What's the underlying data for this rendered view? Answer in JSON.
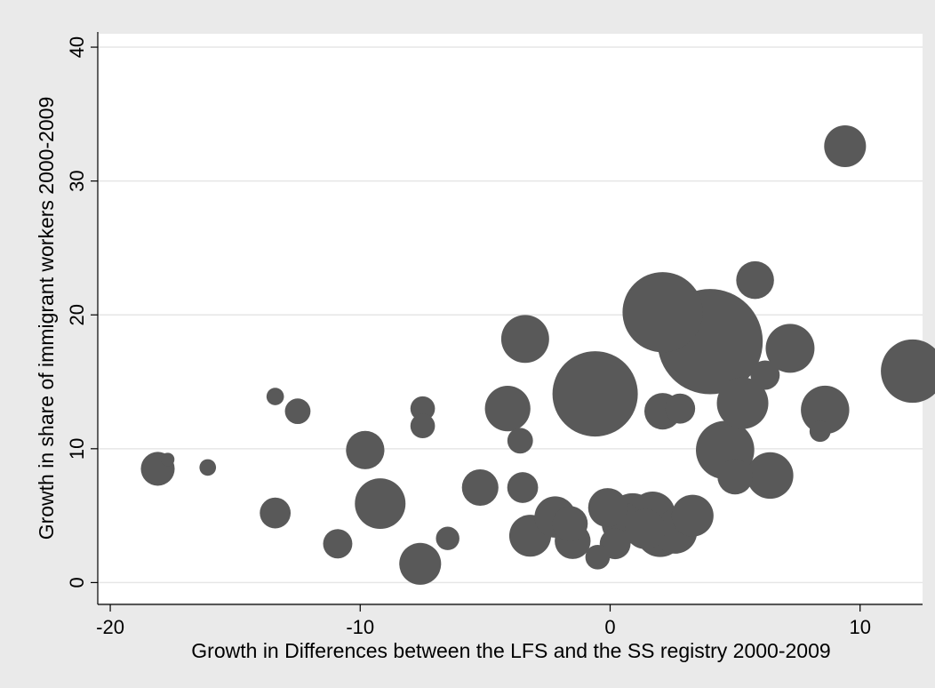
{
  "chart_data": {
    "type": "scatter",
    "subtype": "bubble",
    "title": "",
    "xlabel": "Growth in Differences between the LFS and the SS registry 2000-2009",
    "ylabel": "Growth in share of immigrant workers 2000-2009",
    "xlim": [
      -20.5,
      12.5
    ],
    "ylim": [
      -1.5,
      41
    ],
    "xticks": [
      -20,
      -10,
      0,
      10
    ],
    "xtick_labels": [
      "-20",
      "-10",
      "0",
      "10"
    ],
    "yticks": [
      0,
      10,
      20,
      30,
      40
    ],
    "ytick_labels": [
      "0",
      "10",
      "20",
      "30",
      "40"
    ],
    "grid": true,
    "legend": "none",
    "colors": {
      "marker": "#595959",
      "background": "#eaeaea",
      "plot_bg": "#ffffff",
      "grid": "#e6e6e6"
    },
    "points": [
      {
        "x": -18.1,
        "y": 8.5,
        "size": 2.0
      },
      {
        "x": -17.7,
        "y": 9.2,
        "size": 0.15
      },
      {
        "x": -16.1,
        "y": 8.6,
        "size": 0.3
      },
      {
        "x": -13.4,
        "y": 13.9,
        "size": 0.35
      },
      {
        "x": -13.4,
        "y": 5.2,
        "size": 1.6
      },
      {
        "x": -12.5,
        "y": 12.8,
        "size": 1.0
      },
      {
        "x": -10.9,
        "y": 2.9,
        "size": 1.4
      },
      {
        "x": -9.8,
        "y": 9.9,
        "size": 2.7
      },
      {
        "x": -9.2,
        "y": 5.9,
        "size": 5.1
      },
      {
        "x": -7.5,
        "y": 13.0,
        "size": 0.9
      },
      {
        "x": -7.5,
        "y": 11.7,
        "size": 0.9
      },
      {
        "x": -7.6,
        "y": 1.4,
        "size": 3.3
      },
      {
        "x": -6.5,
        "y": 3.3,
        "size": 0.8
      },
      {
        "x": -5.2,
        "y": 7.1,
        "size": 2.4
      },
      {
        "x": -4.1,
        "y": 13.0,
        "size": 4.0
      },
      {
        "x": -3.4,
        "y": 18.2,
        "size": 4.5
      },
      {
        "x": -3.6,
        "y": 10.6,
        "size": 1.0
      },
      {
        "x": -3.5,
        "y": 7.1,
        "size": 1.6
      },
      {
        "x": -3.2,
        "y": 3.5,
        "size": 3.3
      },
      {
        "x": -2.2,
        "y": 4.9,
        "size": 3.2
      },
      {
        "x": -1.5,
        "y": 3.1,
        "size": 2.3
      },
      {
        "x": -1.6,
        "y": 4.4,
        "size": 2.2
      },
      {
        "x": -0.5,
        "y": 1.9,
        "size": 0.9
      },
      {
        "x": -0.6,
        "y": 14.1,
        "size": 16.0
      },
      {
        "x": -0.1,
        "y": 5.6,
        "size": 2.8
      },
      {
        "x": 0.2,
        "y": 2.9,
        "size": 1.6
      },
      {
        "x": 0.5,
        "y": 4.4,
        "size": 3.3
      },
      {
        "x": 0.9,
        "y": 4.8,
        "size": 5.0
      },
      {
        "x": 1.7,
        "y": 5.1,
        "size": 4.0
      },
      {
        "x": 1.4,
        "y": 4.0,
        "size": 3.0
      },
      {
        "x": 2.0,
        "y": 3.7,
        "size": 4.5
      },
      {
        "x": 2.6,
        "y": 3.8,
        "size": 3.7
      },
      {
        "x": 2.1,
        "y": 20.2,
        "size": 14.0
      },
      {
        "x": 2.1,
        "y": 12.8,
        "size": 2.4
      },
      {
        "x": 2.8,
        "y": 13.0,
        "size": 1.5
      },
      {
        "x": 3.3,
        "y": 5.0,
        "size": 3.3
      },
      {
        "x": 4.0,
        "y": 18.0,
        "size": 25.0
      },
      {
        "x": 4.6,
        "y": 9.9,
        "size": 7.0
      },
      {
        "x": 5.3,
        "y": 13.4,
        "size": 5.3
      },
      {
        "x": 5.0,
        "y": 7.9,
        "size": 2.2
      },
      {
        "x": 5.8,
        "y": 22.6,
        "size": 2.6
      },
      {
        "x": 6.2,
        "y": 15.5,
        "size": 1.4
      },
      {
        "x": 6.4,
        "y": 8.0,
        "size": 4.2
      },
      {
        "x": 7.2,
        "y": 17.5,
        "size": 4.7
      },
      {
        "x": 8.4,
        "y": 11.3,
        "size": 0.6
      },
      {
        "x": 8.6,
        "y": 12.9,
        "size": 4.6
      },
      {
        "x": 9.4,
        "y": 32.6,
        "size": 3.3
      },
      {
        "x": 12.1,
        "y": 15.8,
        "size": 8.4
      }
    ]
  }
}
